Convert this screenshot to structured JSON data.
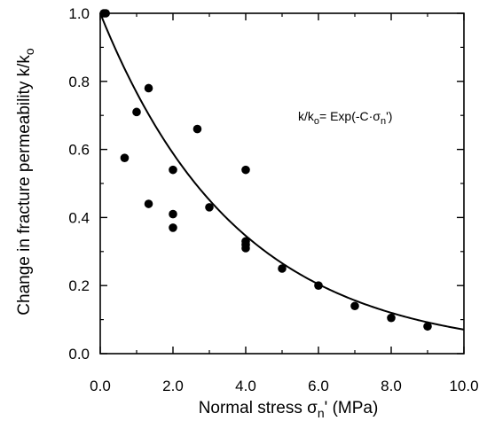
{
  "chart_data": {
    "type": "scatter",
    "xlabel": {
      "text": "Normal stress σ",
      "sub": "n",
      "rest": "' (MPa)"
    },
    "ylabel": {
      "text": "Change in fracture permeability k/k",
      "sub": "o"
    },
    "annotation": {
      "lhs": "k/k",
      "lhs_sub": "o",
      "mid": "= Exp(-C·σ",
      "sub2": "n",
      "end": "')"
    },
    "xlim": [
      0,
      10
    ],
    "ylim": [
      0,
      1
    ],
    "x_ticks": [
      0,
      2,
      4,
      6,
      8,
      10
    ],
    "x_tick_labels": [
      "0.0",
      "2.0",
      "4.0",
      "6.0",
      "8.0",
      "10.0"
    ],
    "y_ticks": [
      0,
      0.2,
      0.4,
      0.6,
      0.8,
      1.0
    ],
    "y_tick_labels": [
      "0.0",
      "0.2",
      "0.4",
      "0.6",
      "0.8",
      "1.0"
    ],
    "grid": false,
    "series": [
      {
        "kind": "points",
        "x": [
          0.1,
          0.15,
          0.67,
          1.0,
          1.33,
          1.33,
          2.0,
          2.0,
          2.0,
          2.67,
          3.0,
          4.0,
          4.0,
          4.0,
          4.0,
          5.0,
          6.0,
          7.0,
          8.0,
          9.0
        ],
        "y": [
          1.0,
          1.0,
          0.575,
          0.71,
          0.78,
          0.44,
          0.54,
          0.41,
          0.37,
          0.66,
          0.43,
          0.54,
          0.33,
          0.31,
          0.32,
          0.25,
          0.2,
          0.14,
          0.105,
          0.08
        ],
        "color": "#000000"
      },
      {
        "kind": "fit",
        "model": "exp",
        "C": 0.265,
        "color": "#000000"
      }
    ]
  }
}
